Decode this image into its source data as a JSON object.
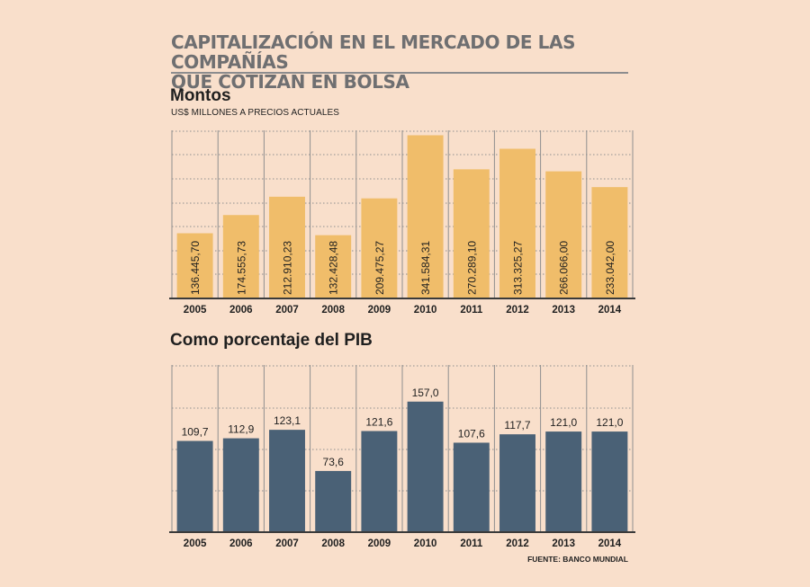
{
  "header": {
    "title_line1": "CAPITALIZACIÓN EN EL MERCADO DE LAS COMPAÑÍAS",
    "title_line2": "QUE COTIZAN EN BOLSA"
  },
  "footer": {
    "source": "FUENTE: BANCO MUNDIAL"
  },
  "colors": {
    "background": "#f9dfcb",
    "bar_montos": "#f0bd6a",
    "bar_pib": "#4a6176",
    "grid": "#8f8f8f"
  },
  "chart_data": [
    {
      "type": "bar",
      "title": "Montos",
      "subtitle": "US$ MILLONES A PRECIOS ACTUALES",
      "categories": [
        "2005",
        "2006",
        "2007",
        "2008",
        "2009",
        "2010",
        "2011",
        "2012",
        "2013",
        "2014"
      ],
      "values": [
        136445.7,
        174555.73,
        212910.23,
        132428.48,
        209475.27,
        341584.31,
        270289.1,
        313325.27,
        266066.0,
        233042.0
      ],
      "labels": [
        "136.445,70",
        "174.555,73",
        "212.910,23",
        "132.428,48",
        "209.475,27",
        "341.584,31",
        "270.289,10",
        "313.325,27",
        "266.066,00",
        "233.042,00"
      ],
      "ylim": [
        0,
        350000
      ],
      "grid": true,
      "label_orientation": "vertical-inside"
    },
    {
      "type": "bar",
      "title": "Como  porcentaje del PIB",
      "categories": [
        "2005",
        "2006",
        "2007",
        "2008",
        "2009",
        "2010",
        "2011",
        "2012",
        "2013",
        "2014"
      ],
      "values": [
        109.7,
        112.9,
        123.1,
        73.6,
        121.6,
        157.0,
        107.6,
        117.7,
        121.0,
        121.0
      ],
      "labels": [
        "109,7",
        "112,9",
        "123,1",
        "73,6",
        "121,6",
        "157,0",
        "107,6",
        "117,7",
        "121,0",
        "121,0"
      ],
      "ylim": [
        0,
        200
      ],
      "grid": true,
      "label_orientation": "above"
    }
  ]
}
